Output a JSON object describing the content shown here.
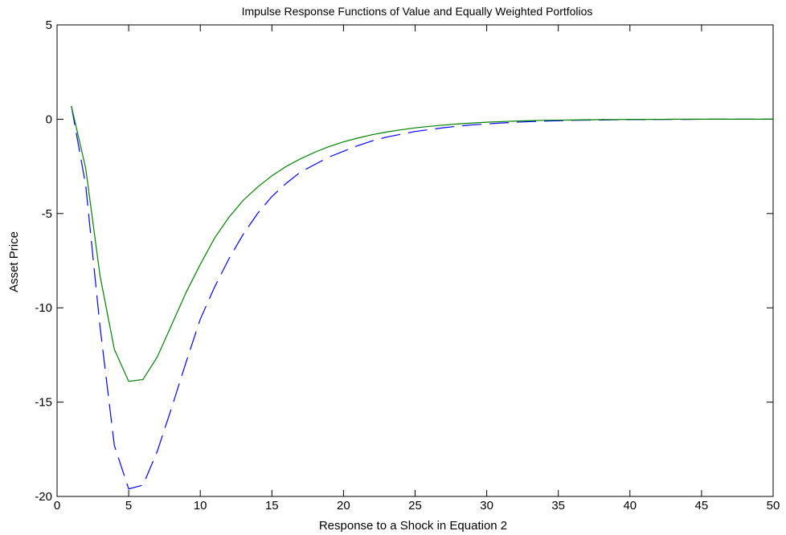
{
  "chart_data": {
    "type": "line",
    "title": "Impulse Response Functions of Value and Equally Weighted Portfolios",
    "xlabel": "Response to a Shock in Equation 2",
    "ylabel": "Asset Price",
    "xlim": [
      0,
      50
    ],
    "ylim": [
      -20,
      5
    ],
    "xticks": [
      0,
      5,
      10,
      15,
      20,
      25,
      30,
      35,
      40,
      45,
      50
    ],
    "yticks": [
      5,
      0,
      -5,
      -10,
      -15,
      -20
    ],
    "xtick_labels": [
      "0",
      "5",
      "10",
      "15",
      "20",
      "25",
      "30",
      "35",
      "40",
      "45",
      "50"
    ],
    "ytick_labels": [
      "5",
      "0",
      "-5",
      "-10",
      "-15",
      "-20"
    ],
    "grid": false,
    "legend": "none",
    "x": [
      1,
      2,
      3,
      4,
      5,
      6,
      7,
      8,
      9,
      10,
      11,
      12,
      13,
      14,
      15,
      16,
      17,
      18,
      19,
      20,
      21,
      22,
      23,
      24,
      25,
      26,
      27,
      28,
      29,
      30,
      31,
      32,
      33,
      34,
      35,
      36,
      37,
      38,
      39,
      40,
      41,
      42,
      43,
      44,
      45,
      46,
      47,
      48,
      49,
      50
    ],
    "series": [
      {
        "color": "#0000ff",
        "style": "dashed",
        "values": [
          0.7,
          -3.5,
          -11.0,
          -17.3,
          -19.6,
          -19.4,
          -17.6,
          -15.3,
          -12.9,
          -10.6,
          -8.9,
          -7.4,
          -6.1,
          -5.0,
          -4.1,
          -3.4,
          -2.8,
          -2.4,
          -2.0,
          -1.7,
          -1.4,
          -1.15,
          -0.95,
          -0.8,
          -0.65,
          -0.55,
          -0.45,
          -0.37,
          -0.3,
          -0.25,
          -0.2,
          -0.16,
          -0.13,
          -0.1,
          -0.08,
          -0.06,
          -0.05,
          -0.04,
          -0.03,
          -0.02,
          -0.02,
          -0.01,
          -0.01,
          -0.01,
          0,
          0,
          0,
          0,
          0,
          0
        ]
      },
      {
        "color": "#008000",
        "style": "solid",
        "values": [
          0.7,
          -2.6,
          -8.3,
          -12.2,
          -13.9,
          -13.8,
          -12.6,
          -10.9,
          -9.2,
          -7.7,
          -6.3,
          -5.2,
          -4.3,
          -3.6,
          -3.0,
          -2.5,
          -2.1,
          -1.75,
          -1.45,
          -1.2,
          -1.0,
          -0.82,
          -0.68,
          -0.56,
          -0.46,
          -0.38,
          -0.31,
          -0.25,
          -0.2,
          -0.16,
          -0.13,
          -0.1,
          -0.08,
          -0.06,
          -0.05,
          -0.04,
          -0.03,
          -0.02,
          -0.02,
          -0.01,
          -0.01,
          -0.01,
          0,
          0,
          0,
          0,
          0,
          0,
          0,
          0
        ]
      }
    ]
  }
}
